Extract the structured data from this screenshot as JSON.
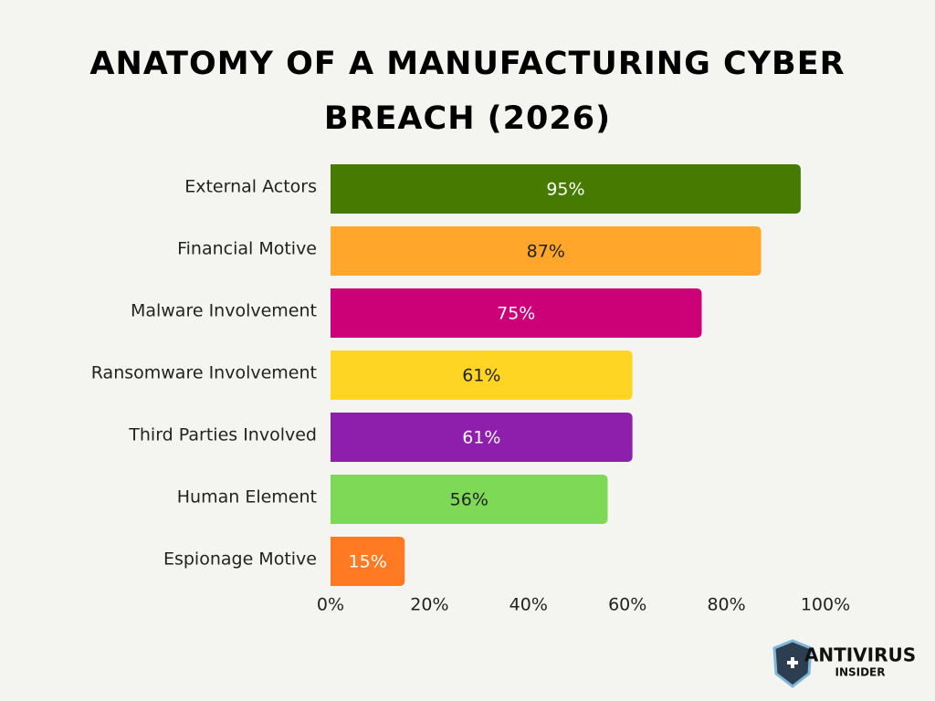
{
  "chart_data": {
    "type": "hbar",
    "title": "ANATOMY OF A MANUFACTURING CYBER BREACH (2026)",
    "categories": [
      "External Actors",
      "Financial Motive",
      "Malware Involvement",
      "Ransomware Involvement",
      "Third Parties Involved",
      "Human Element",
      "Espionage Motive"
    ],
    "values": [
      95,
      87,
      75,
      61,
      61,
      56,
      15
    ],
    "value_labels": [
      "95%",
      "87%",
      "75%",
      "61%",
      "61%",
      "56%",
      "15%"
    ],
    "colors": [
      "#467a00",
      "#ffa62b",
      "#cc0077",
      "#ffd523",
      "#8e1fad",
      "#7ed957",
      "#ff7a22"
    ],
    "xlim": [
      0,
      100
    ],
    "xticks": [
      {
        "value": 0,
        "label": "0%"
      },
      {
        "value": 20,
        "label": "20%"
      },
      {
        "value": 40,
        "label": "40%"
      },
      {
        "value": 60,
        "label": "60%"
      },
      {
        "value": 80,
        "label": "80%"
      },
      {
        "value": 100,
        "label": "100%"
      }
    ],
    "grid": false
  },
  "logo": {
    "line1": "ANTIVIRUS",
    "line2": "INSIDER"
  }
}
